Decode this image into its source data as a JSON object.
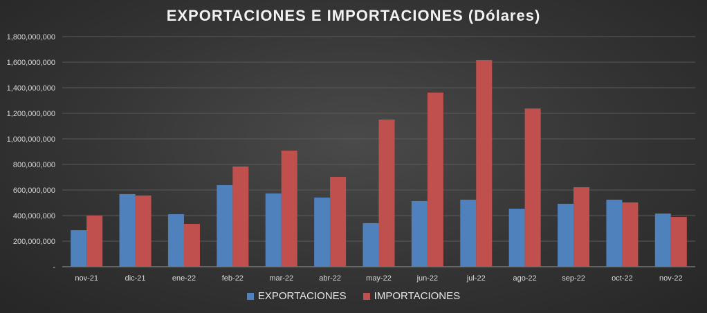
{
  "chart_data": {
    "type": "bar",
    "title": "EXPORTACIONES E IMPORTACIONES (Dólares)",
    "xlabel": "",
    "ylabel": "",
    "ylim": [
      0,
      1800000000
    ],
    "yticks": [
      0,
      200000000,
      400000000,
      600000000,
      800000000,
      1000000000,
      1200000000,
      1400000000,
      1600000000,
      1800000000
    ],
    "ytick_labels": [
      "-",
      "200,000,000",
      "400,000,000",
      "600,000,000",
      "800,000,000",
      "1,000,000,000",
      "1,200,000,000",
      "1,400,000,000",
      "1,600,000,000",
      "1,800,000,000"
    ],
    "grid": true,
    "legend_position": "bottom",
    "categories": [
      "nov-21",
      "dic-21",
      "ene-22",
      "feb-22",
      "mar-22",
      "abr-22",
      "may-22",
      "jun-22",
      "jul-22",
      "ago-22",
      "sep-22",
      "oct-22",
      "nov-22"
    ],
    "series": [
      {
        "name": "EXPORTACIONES",
        "color": "#4f81bd",
        "values": [
          286000000,
          568000000,
          411000000,
          638000000,
          573000000,
          541000000,
          341000000,
          514000000,
          524000000,
          454000000,
          492000000,
          524000000,
          416000000
        ]
      },
      {
        "name": "IMPORTACIONES",
        "color": "#c0504d",
        "values": [
          400000000,
          557000000,
          335000000,
          784000000,
          908000000,
          703000000,
          1151000000,
          1362000000,
          1616000000,
          1238000000,
          622000000,
          503000000,
          389000000
        ]
      }
    ]
  }
}
